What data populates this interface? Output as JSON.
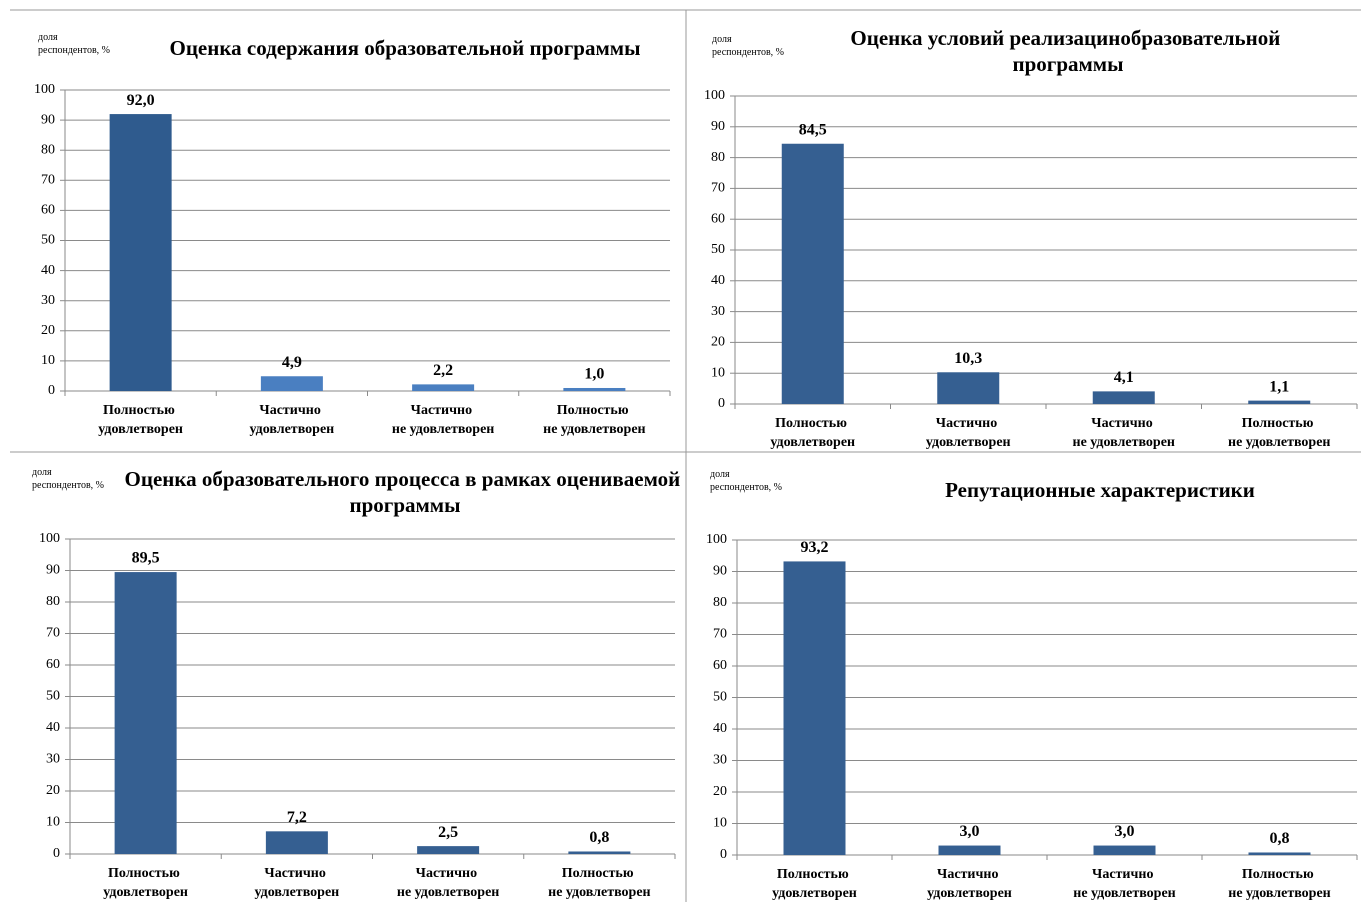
{
  "chart_data": [
    {
      "type": "bar",
      "title": "Оценка содержания образовательной программы",
      "y_label": "доля респондентов, %",
      "categories": [
        "Полностью удовлетворен",
        "Частично удовлетворен",
        "Частично не удовлетворен",
        "Полностью не удовлетворен"
      ],
      "values": [
        92.0,
        4.9,
        2.2,
        1.0
      ],
      "value_labels": [
        "92,0",
        "4,9",
        "2,2",
        "1,0"
      ],
      "colors": [
        "#2f5b8e",
        "#4a7fc1",
        "#4a7fc1",
        "#4a7fc1"
      ],
      "ylim": [
        0,
        100
      ],
      "yticks": [
        0,
        10,
        20,
        30,
        40,
        50,
        60,
        70,
        80,
        90,
        100
      ],
      "grid": true
    },
    {
      "type": "bar",
      "title": "Оценка условий реализацинобразовательной программы",
      "y_label": "доля респондентов, %",
      "categories": [
        "Полностью удовлетворен",
        "Частично удовлетворен",
        "Частично не удовлетворен",
        "Полностью не удовлетворен"
      ],
      "values": [
        84.5,
        10.3,
        4.1,
        1.1
      ],
      "value_labels": [
        "84,5",
        "10,3",
        "4,1",
        "1,1"
      ],
      "colors": [
        "#355f91",
        "#355f91",
        "#355f91",
        "#355f91"
      ],
      "ylim": [
        0,
        100
      ],
      "yticks": [
        0,
        10,
        20,
        30,
        40,
        50,
        60,
        70,
        80,
        90,
        100
      ],
      "grid": true
    },
    {
      "type": "bar",
      "title": "Оценка образовательного процесса в рамках оцениваемой программы",
      "y_label": "доля респондентов, %",
      "categories": [
        "Полностью удовлетворен",
        "Частично удовлетворен",
        "Частично не удовлетворен",
        "Полностью не удовлетворен"
      ],
      "values": [
        89.5,
        7.2,
        2.5,
        0.8
      ],
      "value_labels": [
        "89,5",
        "7,2",
        "2,5",
        "0,8"
      ],
      "colors": [
        "#355f91",
        "#355f91",
        "#355f91",
        "#355f91"
      ],
      "ylim": [
        0,
        100
      ],
      "yticks": [
        0,
        10,
        20,
        30,
        40,
        50,
        60,
        70,
        80,
        90,
        100
      ],
      "grid": true
    },
    {
      "type": "bar",
      "title": "Репутационные характеристики",
      "y_label": "доля респондентов, %",
      "categories": [
        "Полностью удовлетворен",
        "Частично удовлетворен",
        "Частично не удовлетворен",
        "Полностью не удовлетворен"
      ],
      "values": [
        93.2,
        3.0,
        3.0,
        0.8
      ],
      "value_labels": [
        "93,2",
        "3,0",
        "3,0",
        "0,8"
      ],
      "colors": [
        "#355f91",
        "#355f91",
        "#355f91",
        "#355f91"
      ],
      "ylim": [
        0,
        100
      ],
      "yticks": [
        0,
        10,
        20,
        30,
        40,
        50,
        60,
        70,
        80,
        90,
        100
      ],
      "grid": true
    }
  ]
}
